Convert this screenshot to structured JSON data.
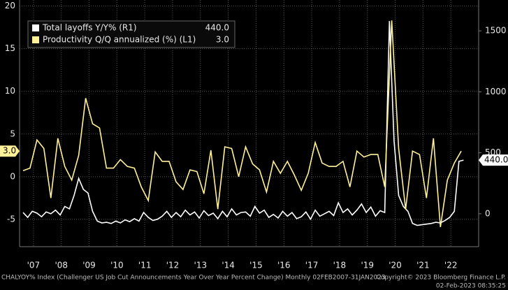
{
  "chart_data": {
    "type": "line",
    "xlim": [
      2007,
      2023.5
    ],
    "xticks": [
      {
        "value": 2007.5,
        "label": "'07"
      },
      {
        "value": 2008.5,
        "label": "'08"
      },
      {
        "value": 2009.5,
        "label": "'09"
      },
      {
        "value": 2010.5,
        "label": "'10"
      },
      {
        "value": 2011.5,
        "label": "'11"
      },
      {
        "value": 2012.5,
        "label": "'12"
      },
      {
        "value": 2013.5,
        "label": "'13"
      },
      {
        "value": 2014.5,
        "label": "'14"
      },
      {
        "value": 2015.5,
        "label": "'15"
      },
      {
        "value": 2016.5,
        "label": "'16"
      },
      {
        "value": 2017.5,
        "label": "'17"
      },
      {
        "value": 2018.5,
        "label": "'18"
      },
      {
        "value": 2019.5,
        "label": "'19"
      },
      {
        "value": 2020.5,
        "label": "'20"
      },
      {
        "value": 2021.5,
        "label": "'21"
      },
      {
        "value": 2022.5,
        "label": "'22"
      }
    ],
    "ylim": [
      -8.2,
      20.7
    ],
    "yticks": [
      -5,
      0,
      5,
      10,
      15,
      20
    ],
    "y2lim": [
      -270,
      1753
    ],
    "y2ticks": [
      0,
      500,
      1000,
      1500
    ],
    "grid": true,
    "series": [
      {
        "name": "Total layoffs Y/Y%  (R1)",
        "color": "#ffffff",
        "axis": "y2",
        "last_value_label": "440.0",
        "x": [
          2007.125,
          2007.292,
          2007.458,
          2007.625,
          2007.792,
          2007.958,
          2008.125,
          2008.292,
          2008.458,
          2008.625,
          2008.792,
          2008.958,
          2009.125,
          2009.292,
          2009.458,
          2009.625,
          2009.792,
          2009.958,
          2010.125,
          2010.292,
          2010.458,
          2010.625,
          2010.792,
          2010.958,
          2011.125,
          2011.292,
          2011.458,
          2011.625,
          2011.792,
          2011.958,
          2012.125,
          2012.292,
          2012.458,
          2012.625,
          2012.792,
          2012.958,
          2013.125,
          2013.292,
          2013.458,
          2013.625,
          2013.792,
          2013.958,
          2014.125,
          2014.292,
          2014.458,
          2014.625,
          2014.792,
          2014.958,
          2015.125,
          2015.292,
          2015.458,
          2015.625,
          2015.792,
          2015.958,
          2016.125,
          2016.292,
          2016.458,
          2016.625,
          2016.792,
          2016.958,
          2017.125,
          2017.292,
          2017.458,
          2017.625,
          2017.792,
          2017.958,
          2018.125,
          2018.292,
          2018.458,
          2018.625,
          2018.792,
          2018.958,
          2019.125,
          2019.292,
          2019.458,
          2019.625,
          2019.792,
          2019.958,
          2020.125,
          2020.292,
          2020.458,
          2020.625,
          2020.792,
          2020.958,
          2021.125,
          2021.292,
          2021.458,
          2021.625,
          2021.792,
          2021.958,
          2022.125,
          2022.292,
          2022.458,
          2022.625,
          2022.792,
          2022.958
        ],
        "values": [
          10,
          -30,
          20,
          5,
          -25,
          15,
          0,
          30,
          -10,
          60,
          40,
          150,
          290,
          200,
          170,
          20,
          -60,
          -75,
          -70,
          -80,
          -60,
          -75,
          -50,
          -65,
          -40,
          -60,
          10,
          -30,
          -55,
          -45,
          -20,
          20,
          -30,
          10,
          -25,
          30,
          -10,
          15,
          -35,
          25,
          -15,
          5,
          -40,
          20,
          -25,
          40,
          -10,
          10,
          15,
          -20,
          60,
          5,
          30,
          -30,
          -5,
          -35,
          20,
          -20,
          10,
          -40,
          -25,
          15,
          -45,
          30,
          -20,
          0,
          20,
          -15,
          90,
          10,
          40,
          -10,
          30,
          80,
          10,
          55,
          -20,
          25,
          10,
          1580,
          600,
          150,
          60,
          20,
          -80,
          -95,
          -90,
          -85,
          -80,
          -70,
          -75,
          -55,
          -30,
          20,
          430,
          440
        ]
      },
      {
        "name": "Productivity Q/Q annualized (%) (L1)",
        "color": "#fff09a",
        "last_value_label": "3.0",
        "x": [
          2007.125,
          2007.375,
          2007.625,
          2007.875,
          2008.125,
          2008.375,
          2008.625,
          2008.875,
          2009.125,
          2009.375,
          2009.625,
          2009.875,
          2010.125,
          2010.375,
          2010.625,
          2010.875,
          2011.125,
          2011.375,
          2011.625,
          2011.875,
          2012.125,
          2012.375,
          2012.625,
          2012.875,
          2013.125,
          2013.375,
          2013.625,
          2013.875,
          2014.125,
          2014.375,
          2014.625,
          2014.875,
          2015.125,
          2015.375,
          2015.625,
          2015.875,
          2016.125,
          2016.375,
          2016.625,
          2016.875,
          2017.125,
          2017.375,
          2017.625,
          2017.875,
          2018.125,
          2018.375,
          2018.625,
          2018.875,
          2019.125,
          2019.375,
          2019.625,
          2019.875,
          2020.125,
          2020.375,
          2020.625,
          2020.875,
          2021.125,
          2021.375,
          2021.625,
          2021.875,
          2022.125,
          2022.375,
          2022.625,
          2022.875
        ],
        "values": [
          0.7,
          1.0,
          4.3,
          3.3,
          -2.5,
          4.5,
          1.2,
          -0.4,
          2.5,
          9.2,
          6.2,
          5.7,
          1.0,
          1.0,
          2.0,
          1.2,
          1.0,
          -1.2,
          -2.8,
          2.9,
          1.8,
          1.8,
          -0.6,
          -1.5,
          0.8,
          0.6,
          -2.0,
          3.1,
          -3.8,
          3.5,
          3.3,
          0.0,
          3.5,
          1.5,
          0.8,
          -1.8,
          1.8,
          0.4,
          1.8,
          0.2,
          -1.6,
          0.4,
          4.0,
          1.6,
          1.2,
          1.2,
          1.8,
          -1.2,
          3.0,
          2.3,
          2.6,
          2.6,
          -1.2,
          18.3,
          3.3,
          -3.8,
          3.0,
          2.6,
          -2.5,
          4.5,
          -5.9,
          -0.4,
          1.6,
          3.0
        ]
      }
    ],
    "footer": [
      "CHALYOY% Index (Challenger US Job Cut Announcements Year Over Year Percent Change) Monthly 02FEB2007-31JAN2023",
      "Copyright© 2023 Bloomberg Finance L.P.",
      "02-Feb-2023 08:35:25"
    ]
  }
}
